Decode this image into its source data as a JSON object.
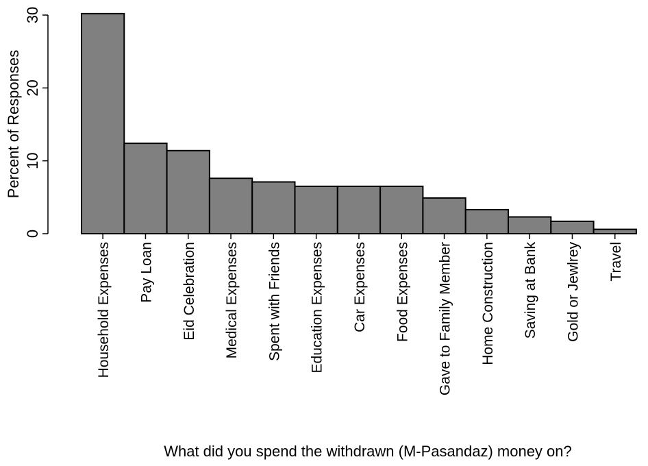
{
  "chart_data": {
    "type": "bar",
    "title": "",
    "xlabel": "What did you spend the withdrawn (M-Pasandaz) money on?",
    "ylabel": "Percent of Responses",
    "categories": [
      "Household Expenses",
      "Pay Loan",
      "Eid Celebration",
      "Medical Expenses",
      "Spent with Friends",
      "Education Expenses",
      "Car Expenses",
      "Food Expenses",
      "Gave to Family Member",
      "Home Construction",
      "Saving at Bank",
      "Gold or Jewlrey",
      "Travel"
    ],
    "values": [
      30.2,
      12.4,
      11.4,
      7.6,
      7.1,
      6.5,
      6.5,
      6.5,
      4.9,
      3.3,
      2.3,
      1.7,
      0.6
    ],
    "ylim": [
      0,
      30
    ],
    "yticks": [
      0,
      10,
      20,
      30
    ],
    "grid": false,
    "bar_color": "#808080",
    "bar_edge_color": "#000000"
  }
}
